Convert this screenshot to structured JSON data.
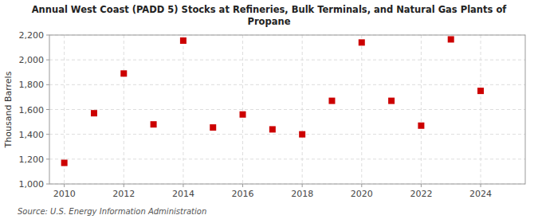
{
  "chart_data": {
    "type": "scatter",
    "title": "Annual West Coast (PADD 5) Stocks at Refineries, Bulk Terminals, and Natural Gas Plants of\nPropane",
    "y_label": "Thousand Barrels",
    "annotations": [
      "Source: U.S. Energy Information Administration"
    ],
    "x": [
      2010,
      2011,
      2012,
      2013,
      2014,
      2015,
      2016,
      2017,
      2018,
      2019,
      2020,
      2021,
      2022,
      2023,
      2024
    ],
    "values": [
      1170,
      1570,
      1890,
      1480,
      2155,
      1455,
      1560,
      1440,
      1400,
      1670,
      2140,
      1670,
      1470,
      2165,
      1750
    ],
    "color": "#cc0000",
    "marker": "square",
    "xlim": [
      2009.5,
      2025.5
    ],
    "xticks": [
      2010,
      2012,
      2014,
      2016,
      2018,
      2020,
      2022,
      2024
    ],
    "ylim": [
      1000,
      2200
    ],
    "yticks": [
      {
        "value": 1000,
        "label": "1,000"
      },
      {
        "value": 1200,
        "label": "1,200"
      },
      {
        "value": 1400,
        "label": "1,400"
      },
      {
        "value": 1600,
        "label": "1,600"
      },
      {
        "value": 1800,
        "label": "1,800"
      },
      {
        "value": 2000,
        "label": "2,000"
      },
      {
        "value": 2200,
        "label": "2,200"
      }
    ],
    "grid": true
  }
}
